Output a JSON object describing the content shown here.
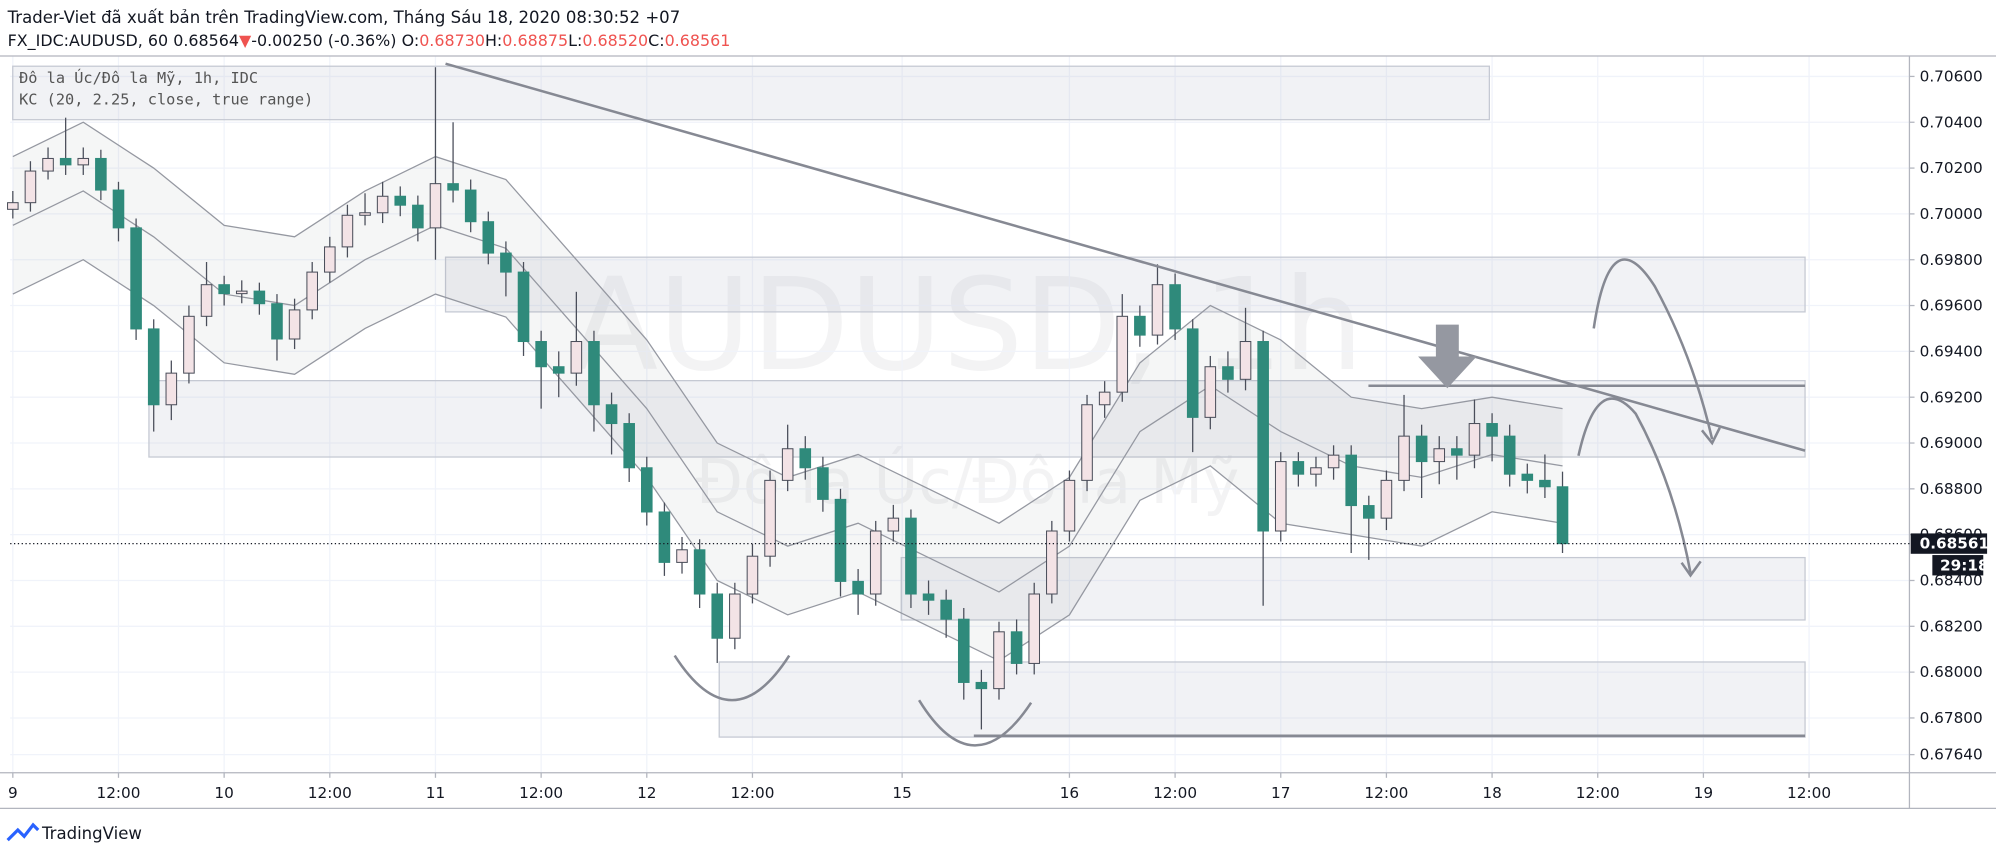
{
  "header": {
    "publisher": "Trader-Viet đã xuất bản trên TradingView.com, Tháng Sáu 18, 2020 08:30:52 +07",
    "symbol": "FX_IDC:AUDUSD, 60",
    "price": "0.68564",
    "arrow": "▼",
    "change": "-0.00250 (-0.36%)",
    "ohlc": [
      {
        "label": "O:",
        "value": "0.68730"
      },
      {
        "label": "H:",
        "value": "0.68875"
      },
      {
        "label": "L:",
        "value": "0.68520"
      },
      {
        "label": "C:",
        "value": "0.68561"
      }
    ]
  },
  "legend": {
    "series_title": "Đô la Úc/Đô la Mỹ, 1h, IDC",
    "indicator": "KC (20, 2.25, close, true range)"
  },
  "watermark": {
    "symbol": "AUDUSD, 1h",
    "description": "Đô la Úc/Đô la Mỹ"
  },
  "logo": "TradingView",
  "chart_data": {
    "type": "candlestick",
    "xlim": [
      -0.3,
      215.4
    ],
    "ylim": [
      0.67561,
      0.70689
    ],
    "xticks": [
      {
        "value": 0,
        "label": "9"
      },
      {
        "value": 12,
        "label": "12:00"
      },
      {
        "value": 24,
        "label": "10"
      },
      {
        "value": 36,
        "label": "12:00"
      },
      {
        "value": 48,
        "label": "11"
      },
      {
        "value": 60,
        "label": "12:00"
      },
      {
        "value": 72,
        "label": "12"
      },
      {
        "value": 84,
        "label": "12:00"
      },
      {
        "value": 101,
        "label": "15"
      },
      {
        "value": 120,
        "label": "16"
      },
      {
        "value": 132,
        "label": "12:00"
      },
      {
        "value": 144,
        "label": "17"
      },
      {
        "value": 156,
        "label": "12:00"
      },
      {
        "value": 168,
        "label": "18"
      },
      {
        "value": 180,
        "label": "12:00"
      },
      {
        "value": 192,
        "label": "19"
      },
      {
        "value": 204,
        "label": "12:00"
      }
    ],
    "yticks": [
      {
        "value": 0.706,
        "label": "0.70600"
      },
      {
        "value": 0.704,
        "label": "0.70400"
      },
      {
        "value": 0.702,
        "label": "0.70200"
      },
      {
        "value": 0.7,
        "label": "0.70000"
      },
      {
        "value": 0.698,
        "label": "0.69800"
      },
      {
        "value": 0.696,
        "label": "0.69600"
      },
      {
        "value": 0.694,
        "label": "0.69400"
      },
      {
        "value": 0.692,
        "label": "0.69200"
      },
      {
        "value": 0.69,
        "label": "0.69000"
      },
      {
        "value": 0.688,
        "label": "0.68800"
      },
      {
        "value": 0.686,
        "label": "0.68600"
      },
      {
        "value": 0.684,
        "label": "0.68400"
      },
      {
        "value": 0.682,
        "label": "0.68200"
      },
      {
        "value": 0.68,
        "label": "0.68000"
      },
      {
        "value": 0.678,
        "label": "0.67800"
      },
      {
        "value": 0.6764,
        "label": "0.67640"
      }
    ],
    "grid": true,
    "up_color": "#f3e3e6",
    "down_color": "#2f8a7b",
    "wick_color": "#4a4e5a",
    "candles": [
      [
        0,
        0.7002,
        0.701,
        0.6998,
        0.70049
      ],
      [
        2,
        0.70049,
        0.7023,
        0.7001,
        0.70187
      ],
      [
        4,
        0.70187,
        0.7029,
        0.7015,
        0.70242
      ],
      [
        6,
        0.70242,
        0.7042,
        0.7017,
        0.70214
      ],
      [
        8,
        0.70214,
        0.7029,
        0.7017,
        0.70242
      ],
      [
        10,
        0.70242,
        0.7028,
        0.7006,
        0.70104
      ],
      [
        12,
        0.70104,
        0.7014,
        0.6988,
        0.69939
      ],
      [
        14,
        0.69939,
        0.6998,
        0.6945,
        0.69498
      ],
      [
        16,
        0.69498,
        0.6954,
        0.6905,
        0.69167
      ],
      [
        18,
        0.69167,
        0.6936,
        0.691,
        0.69305
      ],
      [
        20,
        0.69305,
        0.696,
        0.6926,
        0.69553
      ],
      [
        22,
        0.69553,
        0.6979,
        0.6951,
        0.69691
      ],
      [
        24,
        0.69691,
        0.6973,
        0.696,
        0.69652
      ],
      [
        26,
        0.69652,
        0.6971,
        0.6961,
        0.69663
      ],
      [
        28,
        0.69663,
        0.697,
        0.6956,
        0.69608
      ],
      [
        30,
        0.69608,
        0.6965,
        0.6936,
        0.69454
      ],
      [
        32,
        0.69454,
        0.6963,
        0.6941,
        0.69581
      ],
      [
        34,
        0.69581,
        0.6979,
        0.6954,
        0.69746
      ],
      [
        36,
        0.69746,
        0.699,
        0.697,
        0.69856
      ],
      [
        38,
        0.69856,
        0.7004,
        0.6981,
        0.69994
      ],
      [
        40,
        0.69994,
        0.7009,
        0.6995,
        0.70005
      ],
      [
        42,
        0.70005,
        0.7014,
        0.6996,
        0.70077
      ],
      [
        44,
        0.70077,
        0.7012,
        0.6999,
        0.70038
      ],
      [
        46,
        0.70038,
        0.7008,
        0.6988,
        0.69939
      ],
      [
        48,
        0.69939,
        0.7064,
        0.698,
        0.70132
      ],
      [
        50,
        0.70132,
        0.704,
        0.7005,
        0.70104
      ],
      [
        52,
        0.70104,
        0.7015,
        0.6992,
        0.69966
      ],
      [
        54,
        0.69966,
        0.7001,
        0.6978,
        0.69829
      ],
      [
        56,
        0.69829,
        0.6988,
        0.6964,
        0.69746
      ],
      [
        58,
        0.69746,
        0.6979,
        0.6938,
        0.69443
      ],
      [
        60,
        0.69443,
        0.6949,
        0.6915,
        0.69333
      ],
      [
        62,
        0.69333,
        0.694,
        0.692,
        0.69305
      ],
      [
        64,
        0.69305,
        0.6966,
        0.6925,
        0.69443
      ],
      [
        66,
        0.69443,
        0.6949,
        0.6905,
        0.69167
      ],
      [
        68,
        0.69167,
        0.6922,
        0.6895,
        0.69085
      ],
      [
        70,
        0.69085,
        0.6913,
        0.6883,
        0.68892
      ],
      [
        72,
        0.68892,
        0.6894,
        0.6864,
        0.68699
      ],
      [
        74,
        0.68699,
        0.6874,
        0.6842,
        0.68479
      ],
      [
        76,
        0.68479,
        0.6859,
        0.6843,
        0.68534
      ],
      [
        78,
        0.68534,
        0.6858,
        0.6828,
        0.68341
      ],
      [
        80,
        0.68341,
        0.6839,
        0.6804,
        0.68148
      ],
      [
        82,
        0.68148,
        0.6839,
        0.681,
        0.68341
      ],
      [
        84,
        0.68341,
        0.6856,
        0.683,
        0.68506
      ],
      [
        86,
        0.68506,
        0.6888,
        0.6846,
        0.68837
      ],
      [
        88,
        0.68837,
        0.6908,
        0.6879,
        0.68975
      ],
      [
        90,
        0.68975,
        0.6903,
        0.6884,
        0.68892
      ],
      [
        92,
        0.68892,
        0.6894,
        0.687,
        0.68754
      ],
      [
        94,
        0.68754,
        0.688,
        0.6833,
        0.68396
      ],
      [
        96,
        0.68396,
        0.6845,
        0.6825,
        0.68341
      ],
      [
        98,
        0.68341,
        0.6866,
        0.6829,
        0.68616
      ],
      [
        100,
        0.68616,
        0.6873,
        0.6857,
        0.68672
      ],
      [
        102,
        0.68672,
        0.6871,
        0.6828,
        0.68341
      ],
      [
        104,
        0.68341,
        0.684,
        0.6825,
        0.68314
      ],
      [
        106,
        0.68314,
        0.6836,
        0.6815,
        0.68231
      ],
      [
        108,
        0.68231,
        0.6828,
        0.6788,
        0.67955
      ],
      [
        110,
        0.67955,
        0.6801,
        0.6775,
        0.67928
      ],
      [
        112,
        0.67928,
        0.6822,
        0.6788,
        0.68176
      ],
      [
        114,
        0.68176,
        0.6823,
        0.6799,
        0.68038
      ],
      [
        116,
        0.68038,
        0.6839,
        0.6799,
        0.68341
      ],
      [
        118,
        0.68341,
        0.6866,
        0.683,
        0.68616
      ],
      [
        120,
        0.68616,
        0.6888,
        0.6857,
        0.68837
      ],
      [
        122,
        0.68837,
        0.6921,
        0.6879,
        0.69167
      ],
      [
        124,
        0.69167,
        0.6927,
        0.6911,
        0.69222
      ],
      [
        126,
        0.69222,
        0.6965,
        0.6918,
        0.69553
      ],
      [
        128,
        0.69553,
        0.696,
        0.6942,
        0.69471
      ],
      [
        130,
        0.69471,
        0.6978,
        0.6943,
        0.69691
      ],
      [
        132,
        0.69691,
        0.6974,
        0.6945,
        0.69498
      ],
      [
        134,
        0.69498,
        0.6954,
        0.6896,
        0.69112
      ],
      [
        136,
        0.69112,
        0.6938,
        0.6906,
        0.69333
      ],
      [
        138,
        0.69333,
        0.694,
        0.6922,
        0.69278
      ],
      [
        140,
        0.69278,
        0.6959,
        0.6923,
        0.69443
      ],
      [
        142,
        0.69443,
        0.6949,
        0.6829,
        0.68616
      ],
      [
        144,
        0.68616,
        0.6896,
        0.6857,
        0.68919
      ],
      [
        146,
        0.68919,
        0.6896,
        0.6881,
        0.68864
      ],
      [
        148,
        0.68864,
        0.6894,
        0.6881,
        0.68892
      ],
      [
        150,
        0.68892,
        0.6899,
        0.6884,
        0.68947
      ],
      [
        152,
        0.68947,
        0.6899,
        0.6852,
        0.68727
      ],
      [
        154,
        0.68727,
        0.6877,
        0.6849,
        0.68672
      ],
      [
        156,
        0.68672,
        0.6888,
        0.6862,
        0.68837
      ],
      [
        158,
        0.68837,
        0.6921,
        0.6879,
        0.6903
      ],
      [
        160,
        0.6903,
        0.6908,
        0.6876,
        0.68919
      ],
      [
        162,
        0.68919,
        0.6903,
        0.6882,
        0.68975
      ],
      [
        164,
        0.68975,
        0.6903,
        0.6884,
        0.68947
      ],
      [
        166,
        0.68947,
        0.6919,
        0.6889,
        0.69085
      ],
      [
        168,
        0.69085,
        0.6913,
        0.6892,
        0.6903
      ],
      [
        170,
        0.6903,
        0.6908,
        0.6881,
        0.68864
      ],
      [
        172,
        0.68864,
        0.6891,
        0.6878,
        0.68837
      ],
      [
        174,
        0.68837,
        0.6895,
        0.6876,
        0.68809
      ],
      [
        176,
        0.68809,
        0.68875,
        0.6852,
        0.68561
      ]
    ],
    "keltner": {
      "color": "#9598a1",
      "x": [
        0,
        8,
        16,
        24,
        32,
        40,
        48,
        56,
        64,
        72,
        80,
        88,
        96,
        104,
        112,
        120,
        128,
        136,
        144,
        152,
        160,
        168,
        176
      ],
      "upper": [
        0.7025,
        0.704,
        0.702,
        0.6995,
        0.699,
        0.701,
        0.7025,
        0.7015,
        0.698,
        0.6945,
        0.69,
        0.6885,
        0.6895,
        0.688,
        0.6865,
        0.6885,
        0.6935,
        0.696,
        0.6945,
        0.692,
        0.6915,
        0.692,
        0.6915
      ],
      "basis": [
        0.6995,
        0.701,
        0.699,
        0.6965,
        0.696,
        0.698,
        0.6995,
        0.6985,
        0.695,
        0.6915,
        0.687,
        0.6855,
        0.6865,
        0.685,
        0.6835,
        0.6855,
        0.6905,
        0.6925,
        0.6905,
        0.689,
        0.6885,
        0.6895,
        0.689
      ],
      "lower": [
        0.6965,
        0.698,
        0.696,
        0.6935,
        0.693,
        0.695,
        0.6965,
        0.6955,
        0.692,
        0.6885,
        0.684,
        0.6825,
        0.6835,
        0.682,
        0.6805,
        0.6825,
        0.6875,
        0.689,
        0.6865,
        0.686,
        0.6855,
        0.687,
        0.6865
      ]
    },
    "last_price": {
      "value": 0.68561,
      "label": "0.68561"
    },
    "countdown": "29:18"
  }
}
